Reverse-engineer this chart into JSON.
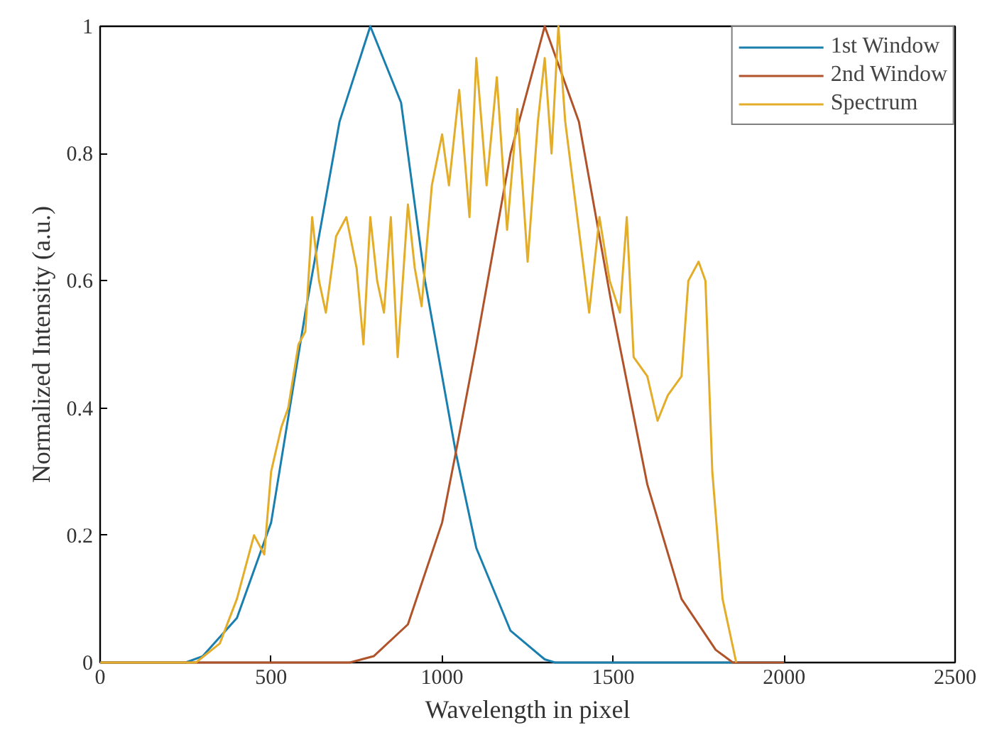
{
  "chart_data": {
    "type": "line",
    "xlabel": "Wavelength in pixel",
    "ylabel": "Normalized Intensity (a.u.)",
    "xlim": [
      0,
      2500
    ],
    "xticks": [
      0,
      500,
      1000,
      1500,
      2000,
      2500
    ],
    "ylim": [
      0,
      1
    ],
    "yticks": [
      0,
      0.2,
      0.4,
      0.6,
      0.8,
      1
    ],
    "grid": false,
    "legend": "top right",
    "marker": "none",
    "line_style": "solid",
    "series": [
      {
        "name": "1st Window",
        "color": "#1a7fae",
        "x": [
          0,
          250,
          300,
          400,
          500,
          600,
          700,
          790,
          880,
          950,
          1040,
          1100,
          1200,
          1300,
          1330,
          2000
        ],
        "values": [
          0,
          0,
          0.01,
          0.07,
          0.22,
          0.55,
          0.85,
          1.0,
          0.88,
          0.6,
          0.33,
          0.18,
          0.05,
          0.005,
          0,
          0
        ]
      },
      {
        "name": "2nd Window",
        "color": "#b0532a",
        "x": [
          0,
          730,
          800,
          900,
          1000,
          1040,
          1100,
          1200,
          1300,
          1400,
          1500,
          1600,
          1700,
          1800,
          1850,
          2000
        ],
        "values": [
          0,
          0,
          0.01,
          0.06,
          0.22,
          0.33,
          0.5,
          0.8,
          1.0,
          0.85,
          0.55,
          0.28,
          0.1,
          0.02,
          0,
          0
        ]
      },
      {
        "name": "Spectrum",
        "color": "#e3ad2a",
        "x": [
          0,
          280,
          350,
          400,
          450,
          480,
          500,
          530,
          550,
          580,
          600,
          620,
          640,
          660,
          690,
          720,
          750,
          770,
          790,
          810,
          830,
          850,
          870,
          900,
          920,
          940,
          970,
          1000,
          1020,
          1050,
          1080,
          1100,
          1130,
          1160,
          1190,
          1220,
          1250,
          1280,
          1300,
          1320,
          1340,
          1360,
          1400,
          1430,
          1460,
          1490,
          1520,
          1540,
          1560,
          1600,
          1630,
          1660,
          1700,
          1720,
          1750,
          1770,
          1790,
          1820,
          1860
        ],
        "values": [
          0,
          0,
          0.03,
          0.1,
          0.2,
          0.17,
          0.3,
          0.37,
          0.4,
          0.5,
          0.52,
          0.7,
          0.6,
          0.55,
          0.67,
          0.7,
          0.62,
          0.5,
          0.7,
          0.6,
          0.55,
          0.7,
          0.48,
          0.72,
          0.62,
          0.56,
          0.75,
          0.83,
          0.75,
          0.9,
          0.7,
          0.95,
          0.75,
          0.92,
          0.68,
          0.87,
          0.63,
          0.85,
          0.95,
          0.8,
          1.0,
          0.85,
          0.68,
          0.55,
          0.7,
          0.6,
          0.55,
          0.7,
          0.48,
          0.45,
          0.38,
          0.42,
          0.45,
          0.6,
          0.63,
          0.6,
          0.3,
          0.1,
          0
        ]
      }
    ]
  }
}
